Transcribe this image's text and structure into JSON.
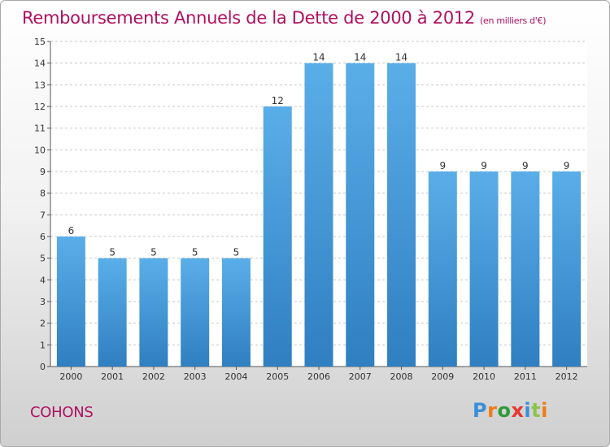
{
  "chart_data": {
    "type": "bar",
    "title": "Remboursements Annuels de la Dette de 2000 à 2012",
    "unit_note": "(en milliers d'€)",
    "categories": [
      "2000",
      "2001",
      "2002",
      "2003",
      "2004",
      "2005",
      "2006",
      "2007",
      "2008",
      "2009",
      "2010",
      "2011",
      "2012"
    ],
    "values": [
      6,
      5,
      5,
      5,
      5,
      12,
      14,
      14,
      14,
      9,
      9,
      9,
      9
    ],
    "ylim": [
      0,
      15
    ],
    "yticks": [
      0,
      1,
      2,
      3,
      4,
      5,
      6,
      7,
      8,
      9,
      10,
      11,
      12,
      13,
      14,
      15
    ],
    "grid": true,
    "bar_color_top": "#5aaee8",
    "bar_color_bottom": "#2f7fc1"
  },
  "commune": "COHONS",
  "logo": {
    "letters": [
      "P",
      "r",
      "o",
      "x",
      "i",
      "t",
      "i"
    ],
    "colors": [
      "#3b8ed8",
      "#f07a1a",
      "#2f9a3a",
      "#e8362e",
      "#3b8ed8",
      "#8bc34a",
      "#f07a1a"
    ]
  }
}
